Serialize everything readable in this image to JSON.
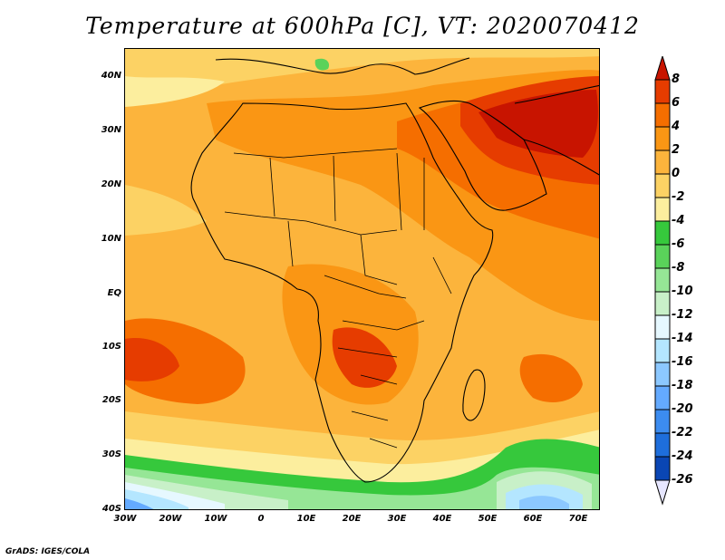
{
  "title": "Temperature at 600hPa [C], VT: 2020070412",
  "credit": "GrADS: IGES/COLA",
  "lat_labels": [
    "40N",
    "30N",
    "20N",
    "10N",
    "EQ",
    "10S",
    "20S",
    "30S",
    "40S"
  ],
  "lon_labels": [
    "30W",
    "20W",
    "10W",
    "0",
    "10E",
    "20E",
    "30E",
    "40E",
    "50E",
    "60E",
    "70E"
  ],
  "colorbar": {
    "labels": [
      "8",
      "6",
      "4",
      "2",
      "0",
      "-2",
      "-4",
      "-6",
      "-8",
      "-10",
      "-12",
      "-14",
      "-16",
      "-18",
      "-20",
      "-22",
      "-24",
      "-26"
    ],
    "colors": [
      "#c81400",
      "#e63c00",
      "#f56e00",
      "#fa9614",
      "#fcb43c",
      "#fcd264",
      "#fcee9e",
      "#36c83c",
      "#5ad25a",
      "#96e696",
      "#c8f0c8",
      "#e6f8ff",
      "#b4e6ff",
      "#8cc8ff",
      "#64aaff",
      "#3c8cf0",
      "#1e6edc",
      "#0a46b4",
      "#002878"
    ]
  },
  "map_colors": {
    "base": "#fcb43c",
    "warm2": "#fa9614",
    "warm4": "#f56e00",
    "warm6": "#e63c00",
    "warm8": "#c81400",
    "cool0": "#fcd264",
    "coolm2": "#fcee9e",
    "green1": "#36c83c",
    "green2": "#5ad25a",
    "green3": "#96e696",
    "pale": "#c8f0c8",
    "ice": "#e6f8ff",
    "blue1": "#b4e6ff",
    "blue2": "#8cc8ff",
    "blue3": "#64aaff"
  }
}
